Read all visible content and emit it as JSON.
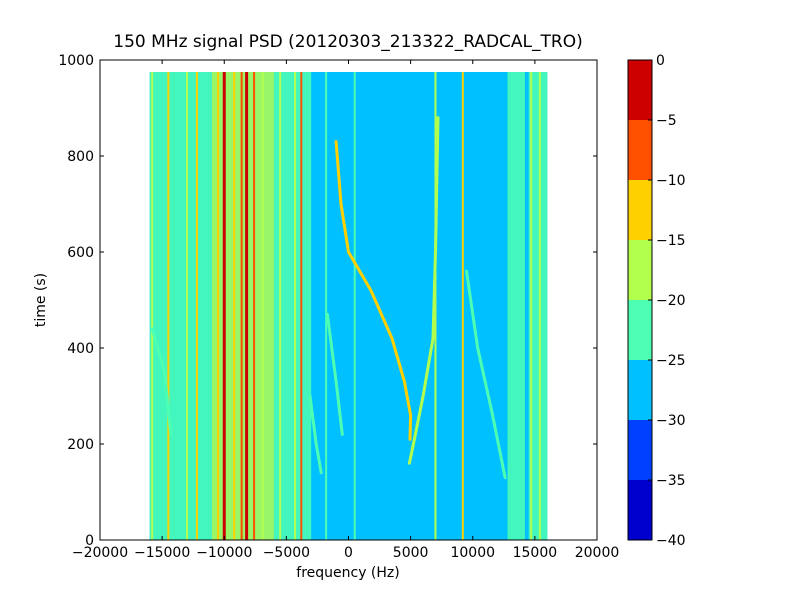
{
  "chart_data": {
    "type": "heatmap",
    "title": "150 MHz signal PSD (20120303_213322_RADCAL_TRO)",
    "xlabel": "frequency (Hz)",
    "ylabel": "time (s)",
    "xlim": [
      -20000,
      20000
    ],
    "ylim": [
      0,
      1000
    ],
    "x_ticks": [
      -20000,
      -15000,
      -10000,
      -5000,
      0,
      5000,
      10000,
      15000,
      20000
    ],
    "x_tick_labels": [
      "−20000",
      "−15000",
      "−10000",
      "−5000",
      "0",
      "5000",
      "10000",
      "15000",
      "20000"
    ],
    "y_ticks": [
      0,
      200,
      400,
      600,
      800,
      1000
    ],
    "y_tick_labels": [
      "0",
      "200",
      "400",
      "600",
      "800",
      "1000"
    ],
    "data_extent": {
      "x": [
        -16000,
        16000
      ],
      "t": [
        0,
        975
      ]
    },
    "background_db": -27,
    "colorbar": {
      "levels": [
        -40,
        -35,
        -30,
        -25,
        -20,
        -15,
        -10,
        -5,
        0
      ],
      "tick_labels": [
        "−40",
        "−35",
        "−30",
        "−25",
        "−20",
        "−15",
        "−10",
        "−5",
        "0"
      ],
      "colors": [
        "#0000cd",
        "#0040ff",
        "#00c0ff",
        "#4dffb3",
        "#b3ff4d",
        "#ffd000",
        "#ff5000",
        "#cd0000"
      ]
    },
    "bands": [
      {
        "x": [
          -16000,
          -11000
        ],
        "db": -22
      },
      {
        "x": [
          -11000,
          -6000
        ],
        "db": -18
      },
      {
        "x": [
          -6000,
          -3000
        ],
        "db": -23
      },
      {
        "x": [
          12800,
          14200
        ],
        "db": -23
      },
      {
        "x": [
          14500,
          16000
        ],
        "db": -24
      }
    ],
    "vertical_lines": [
      {
        "x": -15800,
        "db": -16
      },
      {
        "x": -14500,
        "db": -12
      },
      {
        "x": -13000,
        "db": -18
      },
      {
        "x": -12200,
        "db": -14
      },
      {
        "x": -10500,
        "db": -12
      },
      {
        "x": -10000,
        "db": -3
      },
      {
        "x": -9200,
        "db": -12
      },
      {
        "x": -8600,
        "db": -8
      },
      {
        "x": -8200,
        "db": -1
      },
      {
        "x": -7600,
        "db": -10
      },
      {
        "x": -6900,
        "db": -16
      },
      {
        "x": -5500,
        "db": -16
      },
      {
        "x": -4300,
        "db": -16
      },
      {
        "x": -3800,
        "db": -10
      },
      {
        "x": -1800,
        "db": -22
      },
      {
        "x": 500,
        "db": -22
      },
      {
        "x": 7000,
        "db": -20
      },
      {
        "x": 9200,
        "db": -15
      },
      {
        "x": 14700,
        "db": -17
      },
      {
        "x": 15400,
        "db": -16
      }
    ],
    "drifting_traces": [
      {
        "db": -14,
        "points": [
          [
            -1000,
            830
          ],
          [
            -600,
            700
          ],
          [
            0,
            600
          ],
          [
            1800,
            520
          ],
          [
            3500,
            420
          ],
          [
            4500,
            330
          ],
          [
            5000,
            260
          ],
          [
            4950,
            210
          ]
        ]
      },
      {
        "db": -17,
        "points": [
          [
            7200,
            880
          ],
          [
            7000,
            600
          ],
          [
            6800,
            420
          ],
          [
            6000,
            300
          ],
          [
            5300,
            210
          ],
          [
            4900,
            160
          ]
        ]
      },
      {
        "db": -21,
        "points": [
          [
            9500,
            560
          ],
          [
            10400,
            400
          ],
          [
            11600,
            260
          ],
          [
            12600,
            130
          ]
        ]
      },
      {
        "db": -22,
        "points": [
          [
            -15800,
            440
          ],
          [
            -14800,
            350
          ],
          [
            -14300,
            220
          ]
        ]
      },
      {
        "db": -21,
        "points": [
          [
            -3100,
            300
          ],
          [
            -2600,
            200
          ],
          [
            -2200,
            140
          ]
        ]
      },
      {
        "db": -22,
        "points": [
          [
            -1700,
            470
          ],
          [
            -1000,
            330
          ],
          [
            -500,
            220
          ]
        ]
      }
    ]
  }
}
